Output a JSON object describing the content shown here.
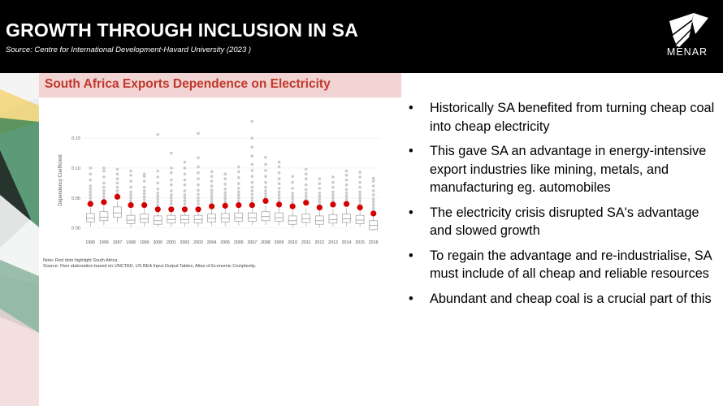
{
  "header": {
    "title": "GROWTH THROUGH INCLUSION IN SA",
    "source": "Source:  Centre for International  Development-Havard University (2023 )",
    "logo_text": "MENAR"
  },
  "chart_panel": {
    "title": "South Africa Exports Dependence on Electricity",
    "note_line1": "Note: Red dots highlight South Africa.",
    "note_line2": "Source: Own elaboration based on UNCTAD, US BEA Input-Output Tables, Atlas of Economic Complexity."
  },
  "chart_data": {
    "type": "box",
    "title": "South Africa Exports Dependence on Electricity",
    "xlabel": "",
    "ylabel": "Dependency Coefficient",
    "ylim": [
      -0.01,
      0.18
    ],
    "yticks": [
      0.0,
      0.05,
      0.1,
      0.15
    ],
    "ytick_labels": [
      "0.00",
      "0.05",
      "0.10",
      "0.15"
    ],
    "categories": [
      "1995",
      "1996",
      "1997",
      "1998",
      "1999",
      "2000",
      "2001",
      "2002",
      "2003",
      "2004",
      "2005",
      "2006",
      "2007",
      "2008",
      "2009",
      "2010",
      "2011",
      "2012",
      "2013",
      "2014",
      "2015",
      "2016"
    ],
    "boxes": [
      {
        "lo": 0.002,
        "q1": 0.01,
        "med": 0.016,
        "q3": 0.024,
        "hi": 0.034
      },
      {
        "lo": 0.004,
        "q1": 0.012,
        "med": 0.018,
        "q3": 0.027,
        "hi": 0.037
      },
      {
        "lo": 0.008,
        "q1": 0.018,
        "med": 0.025,
        "q3": 0.035,
        "hi": 0.045
      },
      {
        "lo": 0.001,
        "q1": 0.007,
        "med": 0.013,
        "q3": 0.021,
        "hi": 0.031
      },
      {
        "lo": 0.002,
        "q1": 0.009,
        "med": 0.015,
        "q3": 0.023,
        "hi": 0.033
      },
      {
        "lo": 0.001,
        "q1": 0.006,
        "med": 0.012,
        "q3": 0.02,
        "hi": 0.03
      },
      {
        "lo": 0.002,
        "q1": 0.008,
        "med": 0.014,
        "q3": 0.021,
        "hi": 0.031
      },
      {
        "lo": 0.002,
        "q1": 0.008,
        "med": 0.014,
        "q3": 0.021,
        "hi": 0.031
      },
      {
        "lo": 0.002,
        "q1": 0.008,
        "med": 0.014,
        "q3": 0.021,
        "hi": 0.031
      },
      {
        "lo": 0.003,
        "q1": 0.01,
        "med": 0.016,
        "q3": 0.023,
        "hi": 0.033
      },
      {
        "lo": 0.003,
        "q1": 0.01,
        "med": 0.016,
        "q3": 0.024,
        "hi": 0.034
      },
      {
        "lo": 0.004,
        "q1": 0.011,
        "med": 0.017,
        "q3": 0.025,
        "hi": 0.035
      },
      {
        "lo": 0.004,
        "q1": 0.011,
        "med": 0.017,
        "q3": 0.025,
        "hi": 0.035
      },
      {
        "lo": 0.005,
        "q1": 0.012,
        "med": 0.019,
        "q3": 0.027,
        "hi": 0.037
      },
      {
        "lo": 0.004,
        "q1": 0.011,
        "med": 0.017,
        "q3": 0.025,
        "hi": 0.035
      },
      {
        "lo": 0.001,
        "q1": 0.006,
        "med": 0.012,
        "q3": 0.02,
        "hi": 0.03
      },
      {
        "lo": 0.003,
        "q1": 0.009,
        "med": 0.015,
        "q3": 0.023,
        "hi": 0.033
      },
      {
        "lo": 0.001,
        "q1": 0.006,
        "med": 0.012,
        "q3": 0.02,
        "hi": 0.03
      },
      {
        "lo": 0.002,
        "q1": 0.008,
        "med": 0.014,
        "q3": 0.022,
        "hi": 0.032
      },
      {
        "lo": 0.003,
        "q1": 0.009,
        "med": 0.015,
        "q3": 0.023,
        "hi": 0.033
      },
      {
        "lo": 0.002,
        "q1": 0.007,
        "med": 0.013,
        "q3": 0.021,
        "hi": 0.031
      },
      {
        "lo": -0.004,
        "q1": -0.003,
        "med": 0.004,
        "q3": 0.012,
        "hi": 0.02
      }
    ],
    "outliers": [
      [
        0.045,
        0.05,
        0.055,
        0.06,
        0.065,
        0.07,
        0.08,
        0.09,
        0.1
      ],
      [
        0.047,
        0.052,
        0.057,
        0.062,
        0.068,
        0.075,
        0.085,
        0.095,
        0.1
      ],
      [
        0.052,
        0.057,
        0.062,
        0.068,
        0.075,
        0.082,
        0.09,
        0.098
      ],
      [
        0.04,
        0.045,
        0.05,
        0.055,
        0.06,
        0.068,
        0.078,
        0.088,
        0.095
      ],
      [
        0.042,
        0.047,
        0.052,
        0.057,
        0.062,
        0.068,
        0.078,
        0.086,
        0.09
      ],
      [
        0.038,
        0.043,
        0.048,
        0.053,
        0.058,
        0.065,
        0.075,
        0.085,
        0.095,
        0.156
      ],
      [
        0.04,
        0.045,
        0.05,
        0.055,
        0.062,
        0.072,
        0.08,
        0.092,
        0.1,
        0.125
      ],
      [
        0.04,
        0.045,
        0.05,
        0.055,
        0.062,
        0.072,
        0.08,
        0.09,
        0.1,
        0.11
      ],
      [
        0.04,
        0.045,
        0.05,
        0.056,
        0.063,
        0.072,
        0.082,
        0.092,
        0.102,
        0.117,
        0.158
      ],
      [
        0.043,
        0.048,
        0.053,
        0.058,
        0.063,
        0.07,
        0.078,
        0.086,
        0.094
      ],
      [
        0.044,
        0.049,
        0.054,
        0.059,
        0.065,
        0.073,
        0.082,
        0.09
      ],
      [
        0.045,
        0.05,
        0.055,
        0.06,
        0.066,
        0.074,
        0.084,
        0.094,
        0.102
      ],
      [
        0.045,
        0.05,
        0.056,
        0.062,
        0.068,
        0.076,
        0.086,
        0.096,
        0.106,
        0.12,
        0.135,
        0.15,
        0.178
      ],
      [
        0.047,
        0.052,
        0.057,
        0.062,
        0.068,
        0.076,
        0.086,
        0.096,
        0.106,
        0.118
      ],
      [
        0.045,
        0.05,
        0.055,
        0.06,
        0.066,
        0.074,
        0.082,
        0.092,
        0.102,
        0.11
      ],
      [
        0.038,
        0.043,
        0.048,
        0.053,
        0.058,
        0.066,
        0.076,
        0.086
      ],
      [
        0.043,
        0.048,
        0.053,
        0.058,
        0.064,
        0.072,
        0.082,
        0.09,
        0.098
      ],
      [
        0.038,
        0.043,
        0.048,
        0.053,
        0.058,
        0.066,
        0.074,
        0.082
      ],
      [
        0.04,
        0.045,
        0.05,
        0.055,
        0.06,
        0.068,
        0.076,
        0.085
      ],
      [
        0.043,
        0.048,
        0.053,
        0.058,
        0.064,
        0.072,
        0.08,
        0.088,
        0.095
      ],
      [
        0.04,
        0.045,
        0.05,
        0.055,
        0.06,
        0.068,
        0.076,
        0.085,
        0.093
      ],
      [
        0.028,
        0.033,
        0.038,
        0.043,
        0.048,
        0.055,
        0.062,
        0.07,
        0.078,
        0.083
      ]
    ],
    "series": [
      {
        "name": "South Africa",
        "color": "#d40000",
        "values": [
          0.04,
          0.043,
          0.052,
          0.038,
          0.038,
          0.031,
          0.031,
          0.031,
          0.031,
          0.036,
          0.037,
          0.038,
          0.038,
          0.045,
          0.039,
          0.036,
          0.042,
          0.034,
          0.039,
          0.04,
          0.034,
          0.024
        ]
      }
    ]
  },
  "bullets": [
    "Historically SA benefited from turning  cheap coal  into cheap electricity",
    "This gave SA  an advantage in energy-intensive export  industries  like mining, metals, and manufacturing eg. automobiles",
    " The electricity crisis disrupted SA's advantage and slowed growth",
    "To regain the advantage and re-industrialise, SA  must include of all cheap and reliable resources",
    "Abundant and cheap coal is a crucial part of this"
  ],
  "bullet_symbol": "•",
  "colors": {
    "header_bg": "#000000",
    "accent_red": "#c0392b",
    "title_band": "#f1d3d3",
    "box_stroke": "#9a9a9a",
    "outlier": "#c4c4c4",
    "flag_green": "#2e7d4f",
    "flag_gold": "#f2c230"
  }
}
